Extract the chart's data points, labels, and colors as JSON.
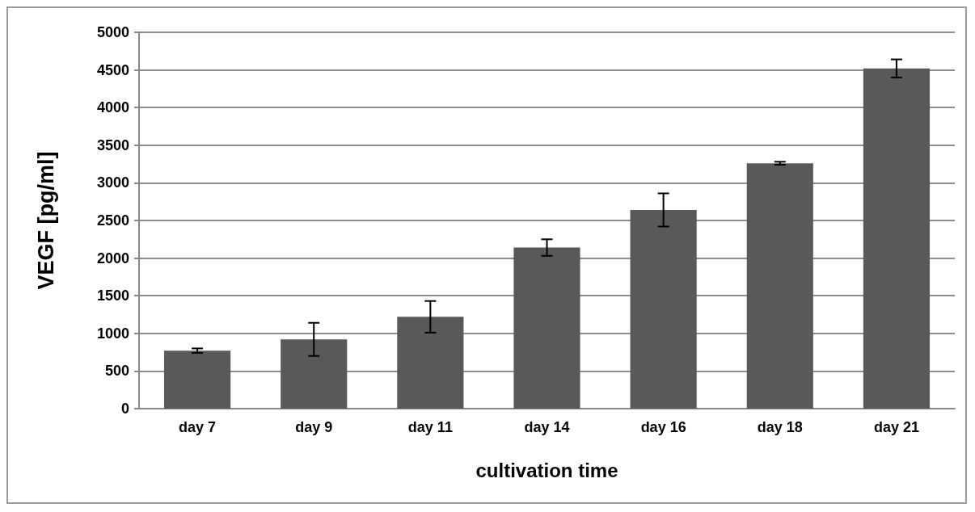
{
  "chart_data": {
    "type": "bar",
    "xlabel": "cultivation time",
    "ylabel": "VEGF [pg/ml]",
    "categories": [
      "day 7",
      "day 9",
      "day 11",
      "day 14",
      "day 16",
      "day 18",
      "day 21"
    ],
    "values": [
      770,
      920,
      1220,
      2140,
      2640,
      3260,
      4520
    ],
    "errors": [
      30,
      220,
      210,
      110,
      220,
      20,
      120
    ],
    "color": "#595959",
    "ylim": [
      0,
      5000
    ],
    "yticks": [
      0,
      500,
      1000,
      1500,
      2000,
      2500,
      3000,
      3500,
      4000,
      4500,
      5000
    ],
    "grid": "y"
  }
}
